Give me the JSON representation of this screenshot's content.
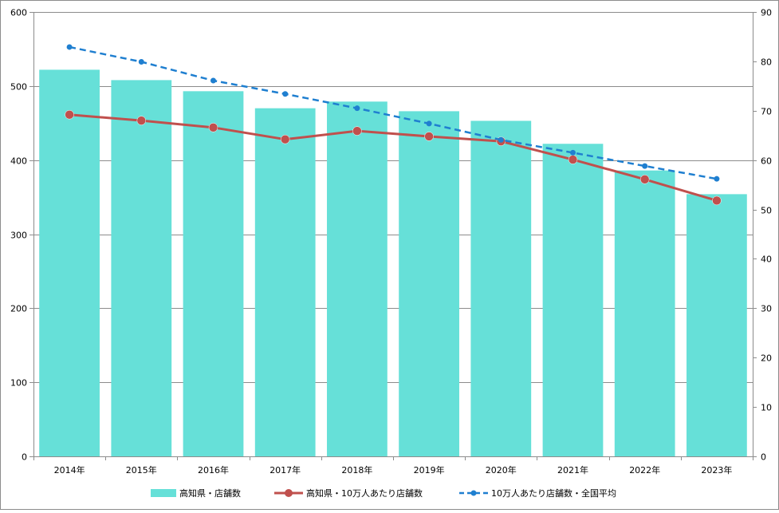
{
  "chart_data": {
    "type": "bar",
    "categories": [
      "2014年",
      "2015年",
      "2016年",
      "2017年",
      "2018年",
      "2019年",
      "2020年",
      "2021年",
      "2022年",
      "2023年"
    ],
    "series": [
      {
        "name": "高知県・店舗数",
        "type": "bar",
        "axis": "left",
        "color": "#66e0d8",
        "values": [
          522,
          508,
          493,
          470,
          479,
          466,
          453,
          422,
          386,
          354
        ]
      },
      {
        "name": "高知県・10万人あたり店舗数",
        "type": "line",
        "axis": "right",
        "color": "#c0504d",
        "line_style": "solid",
        "values": [
          69.2,
          68.0,
          66.6,
          64.2,
          65.9,
          64.8,
          63.8,
          60.1,
          56.1,
          51.8
        ]
      },
      {
        "name": "10万人あたり店舗数・全国平均",
        "type": "line",
        "axis": "right",
        "color": "#1f7fd0",
        "line_style": "dashed",
        "values": [
          82.9,
          79.9,
          76.1,
          73.4,
          70.5,
          67.4,
          64.1,
          61.5,
          58.8,
          56.2
        ]
      }
    ],
    "y_left": {
      "min": 0,
      "max": 600,
      "ticks": [
        0,
        100,
        200,
        300,
        400,
        500,
        600
      ]
    },
    "y_right": {
      "min": 0,
      "max": 90,
      "ticks": [
        0,
        10,
        20,
        30,
        40,
        50,
        60,
        70,
        80,
        90
      ]
    },
    "grid": true,
    "legend_position": "bottom"
  }
}
